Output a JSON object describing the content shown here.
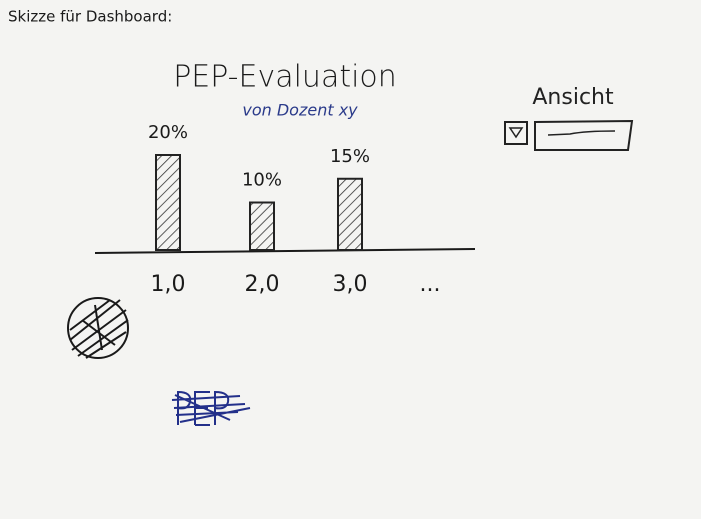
{
  "header": {
    "title": "Skizze für Dashboard:"
  },
  "chart_data": {
    "type": "bar",
    "title": "PEP-Evaluation",
    "subtitle": "von Dozent xy",
    "categories": [
      "1,0",
      "2,0",
      "3,0",
      "..."
    ],
    "values": [
      20,
      10,
      15,
      null
    ],
    "value_labels": [
      "20%",
      "10%",
      "15%",
      null
    ],
    "color": "#222222"
  },
  "view_control": {
    "label": "Ansicht"
  }
}
